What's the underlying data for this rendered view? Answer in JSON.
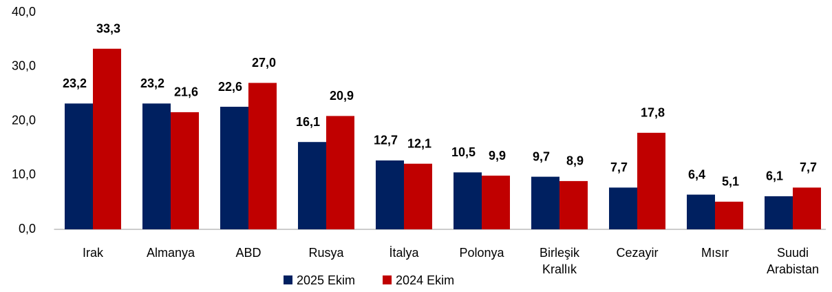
{
  "chart_data": {
    "type": "bar",
    "categories": [
      "Irak",
      "Almanya",
      "ABD",
      "Rusya",
      "İtalya",
      "Polonya",
      "Birleşik Krallık",
      "Cezayir",
      "Mısır",
      "Suudi Arabistan"
    ],
    "series": [
      {
        "name": "2025 Ekim",
        "color": "#002060",
        "values": [
          23.2,
          23.2,
          22.6,
          16.1,
          12.7,
          10.5,
          9.7,
          7.7,
          6.4,
          6.1
        ],
        "value_labels": [
          "23,2",
          "23,2",
          "22,6",
          "16,1",
          "12,7",
          "10,5",
          "9,7",
          "7,7",
          "6,4",
          "6,1"
        ]
      },
      {
        "name": "2024 Ekim",
        "color": "#c00000",
        "values": [
          33.3,
          21.6,
          27.0,
          20.9,
          12.1,
          9.9,
          8.9,
          17.8,
          5.1,
          7.7
        ],
        "value_labels": [
          "33,3",
          "21,6",
          "27,0",
          "20,9",
          "12,1",
          "9,9",
          "8,9",
          "17,8",
          "5,1",
          "7,7"
        ]
      }
    ],
    "ylim": [
      0,
      40
    ],
    "yticks": [
      {
        "value": 0,
        "label": "0,0"
      },
      {
        "value": 10,
        "label": "10,0"
      },
      {
        "value": 20,
        "label": "20,0"
      },
      {
        "value": 30,
        "label": "30,0"
      },
      {
        "value": 40,
        "label": "40,0"
      }
    ],
    "grid": false,
    "legend": "bottom"
  }
}
